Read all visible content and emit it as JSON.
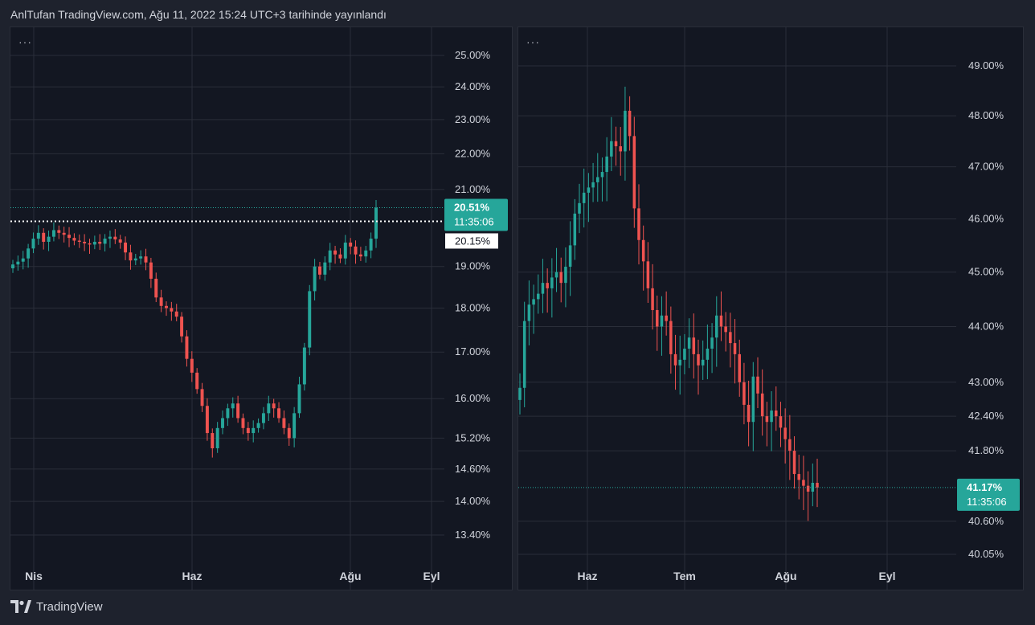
{
  "header": {
    "publisher_line": "AnlTufan TradingView.com, Ağu 11, 2022 15:24 UTC+3 tarihinde yayınlandı"
  },
  "footer": {
    "brand": "TradingView"
  },
  "menu_dots": "···",
  "colors": {
    "background": "#1e222d",
    "pane": "#131722",
    "grid": "#2a2e39",
    "up": "#26a69a",
    "down": "#ef5350",
    "text": "#d1d4dc"
  },
  "chart_data": [
    {
      "type": "candlestick",
      "scale": "log",
      "grid": true,
      "x_tick_labels": [
        "Nis",
        "Haz",
        "Ağu",
        "Eyl"
      ],
      "y_tick_labels": [
        "25.00%",
        "24.00%",
        "23.00%",
        "22.00%",
        "21.00%",
        "19.00%",
        "18.00%",
        "17.00%",
        "16.00%",
        "15.20%",
        "14.60%",
        "14.00%",
        "13.40%"
      ],
      "last_price": {
        "value": "20.51%",
        "countdown": "11:35:06"
      },
      "horizontal_line": {
        "value": "20.15%"
      },
      "close_series": [
        19.05,
        19.12,
        19.2,
        19.45,
        19.7,
        19.85,
        19.62,
        19.75,
        19.92,
        19.85,
        19.8,
        19.72,
        19.65,
        19.62,
        19.58,
        19.55,
        19.62,
        19.57,
        19.7,
        19.75,
        19.68,
        19.6,
        19.35,
        19.15,
        19.2,
        19.25,
        19.1,
        18.7,
        18.25,
        18.05,
        18.0,
        17.92,
        17.8,
        17.35,
        16.85,
        16.55,
        16.2,
        15.85,
        15.3,
        15.0,
        15.4,
        15.6,
        15.8,
        15.9,
        15.6,
        15.4,
        15.3,
        15.4,
        15.5,
        15.7,
        15.9,
        15.8,
        15.6,
        15.4,
        15.2,
        15.7,
        16.3,
        17.1,
        18.4,
        19.0,
        18.8,
        19.1,
        19.4,
        19.3,
        19.2,
        19.6,
        19.5,
        19.3,
        19.25,
        19.4,
        19.7,
        20.51
      ]
    },
    {
      "type": "candlestick",
      "scale": "log",
      "grid": true,
      "x_tick_labels": [
        "Haz",
        "Tem",
        "Ağu",
        "Eyl"
      ],
      "y_tick_labels": [
        "49.00%",
        "48.00%",
        "47.00%",
        "46.00%",
        "45.00%",
        "44.00%",
        "43.00%",
        "42.40%",
        "41.80%",
        "40.60%",
        "40.05%"
      ],
      "last_price": {
        "value": "41.17%",
        "countdown": "11:35:06"
      },
      "close_series": [
        42.9,
        44.1,
        44.4,
        44.5,
        44.6,
        44.8,
        44.7,
        44.9,
        45.0,
        44.8,
        45.1,
        45.5,
        46.1,
        46.3,
        46.5,
        46.6,
        46.7,
        46.8,
        46.9,
        47.2,
        47.5,
        47.4,
        47.3,
        48.1,
        47.6,
        46.2,
        45.6,
        45.2,
        44.7,
        44.3,
        44.0,
        44.2,
        44.1,
        43.5,
        43.3,
        43.4,
        43.6,
        43.8,
        43.5,
        43.3,
        43.4,
        43.6,
        43.8,
        44.2,
        44.0,
        43.9,
        43.7,
        43.5,
        43.0,
        42.6,
        42.3,
        43.1,
        42.8,
        42.4,
        42.3,
        42.5,
        42.4,
        42.2,
        42.0,
        41.8,
        41.4,
        41.3,
        41.2,
        41.1,
        41.25,
        41.17
      ]
    }
  ]
}
